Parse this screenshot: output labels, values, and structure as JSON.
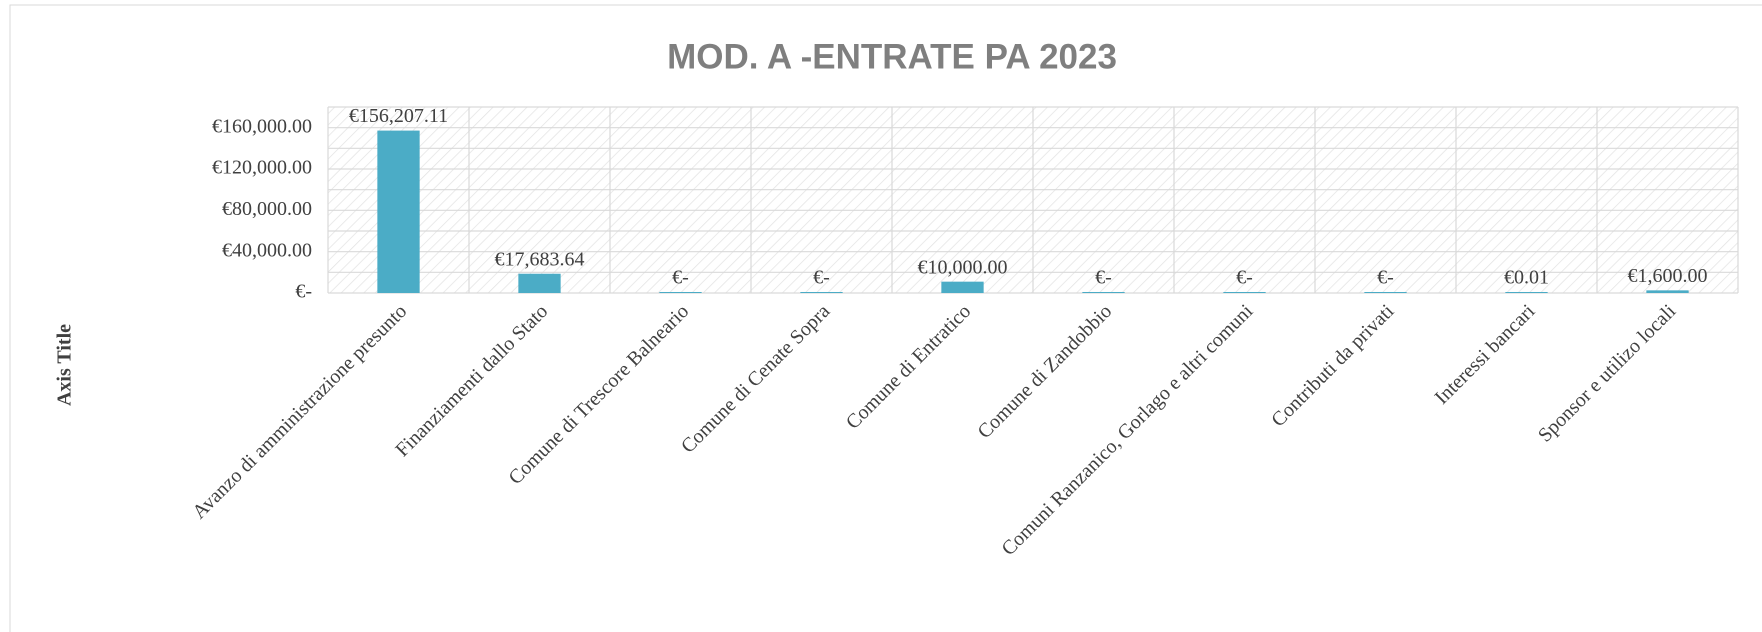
{
  "chart_data": {
    "type": "bar",
    "title": "MOD. A -ENTRATE PA 2023",
    "y_axis_title": "Axis Title",
    "categories": [
      "Avanzo di amministrazione presunto",
      "Finanziamenti dallo Stato",
      "Comune di Trescore Balneario",
      "Comune di Cenate Sopra",
      "Comune di Entratico",
      "Comune di Zandobbio",
      "Comuni Ranzanico, Gorlago e altri comuni",
      "Contributi da privati",
      "Interessi bancari",
      "Sponsor e utilizo locali"
    ],
    "values": [
      156207.11,
      17683.64,
      0,
      0,
      10000,
      0,
      0,
      0,
      0.01,
      1600
    ],
    "value_labels": [
      "€156,207.11",
      "€17,683.64",
      "€-",
      "€-",
      "€10,000.00",
      "€-",
      "€-",
      "€-",
      "€0.01",
      "€1,600.00"
    ],
    "color": "#4bacc6",
    "ylim": [
      0,
      180000
    ],
    "yticks": [
      {
        "value": 0,
        "label": "€-"
      },
      {
        "value": 40000,
        "label": "€40,000.00"
      },
      {
        "value": 80000,
        "label": "€80,000.00"
      },
      {
        "value": 120000,
        "label": "€120,000.00"
      },
      {
        "value": 160000,
        "label": "€160,000.00"
      }
    ],
    "minor_gridlines": [
      20000,
      60000,
      100000,
      140000,
      180000
    ],
    "grid": true
  }
}
